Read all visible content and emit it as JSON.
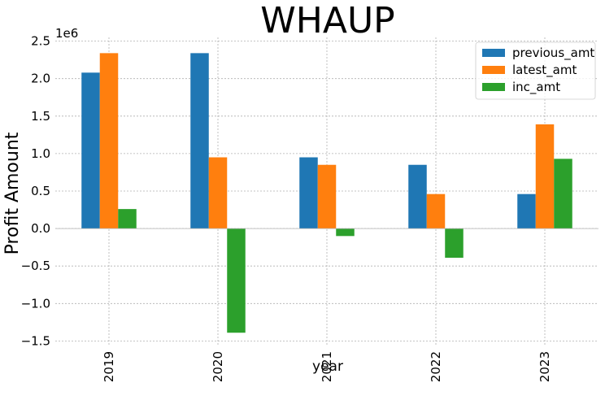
{
  "chart_data": {
    "type": "bar",
    "title": "WHAUP",
    "xlabel": "year",
    "ylabel": "Profit Amount",
    "y_offset_label": "1e6",
    "categories": [
      "2019",
      "2020",
      "2021",
      "2022",
      "2023"
    ],
    "series": [
      {
        "name": "previous_amt",
        "color": "#1f77b4",
        "values": [
          2080000,
          2340000,
          950000,
          850000,
          460000
        ]
      },
      {
        "name": "latest_amt",
        "color": "#ff7f0e",
        "values": [
          2340000,
          950000,
          850000,
          460000,
          1390000
        ]
      },
      {
        "name": "inc_amt",
        "color": "#2ca02c",
        "values": [
          260000,
          -1390000,
          -100000,
          -390000,
          930000
        ]
      }
    ],
    "ylim": [
      -1550000,
      2550000
    ],
    "yticks": [
      -1500000,
      -1000000,
      -500000,
      0,
      500000,
      1000000,
      1500000,
      2000000,
      2500000
    ],
    "ytick_labels": [
      "−1.5",
      "−1.0",
      "−0.5",
      "0.0",
      "0.5",
      "1.0",
      "1.5",
      "2.0",
      "2.5"
    ],
    "grid": true,
    "legend_position": "top-right"
  }
}
